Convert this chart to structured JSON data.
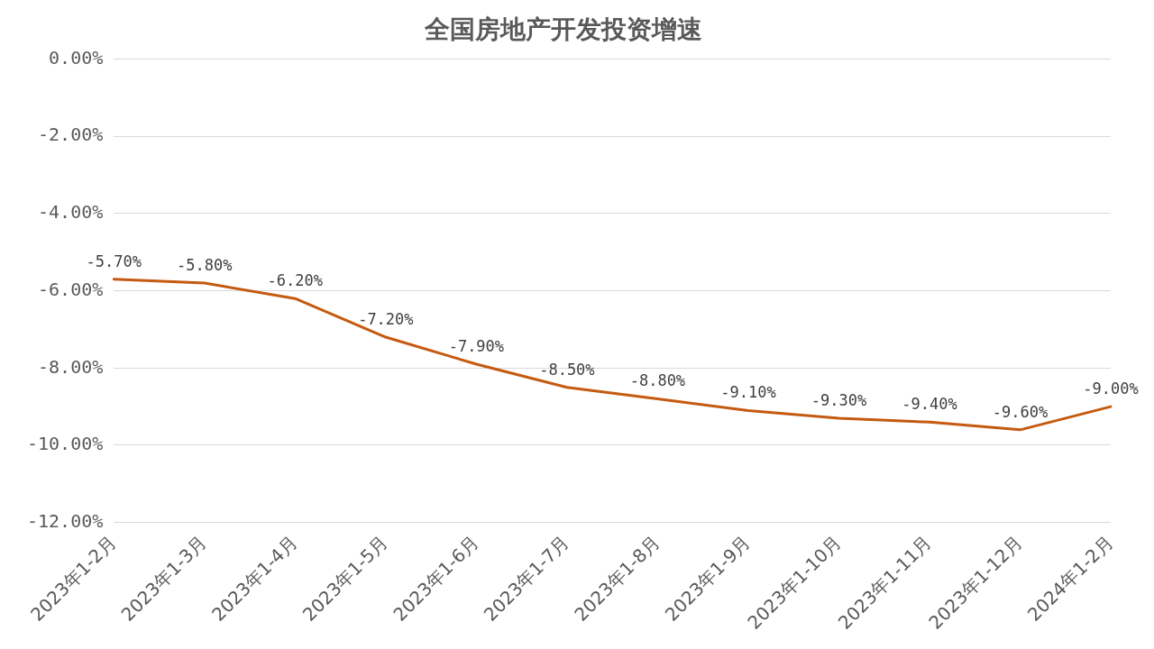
{
  "chart_data": {
    "type": "line",
    "title": "全国房地产开发投资增速",
    "categories": [
      "2023年1-2月",
      "2023年1-3月",
      "2023年1-4月",
      "2023年1-5月",
      "2023年1-6月",
      "2023年1-7月",
      "2023年1-8月",
      "2023年1-9月",
      "2023年1-10月",
      "2023年1-11月",
      "2023年1-12月",
      "2024年1-2月"
    ],
    "series": [
      {
        "color": "#c55a11",
        "values": [
          -5.7,
          -5.8,
          -6.2,
          -7.2,
          -7.9,
          -8.5,
          -8.8,
          -9.1,
          -9.3,
          -9.4,
          -9.6,
          -9.0
        ],
        "value_labels": [
          "-5.70%",
          "-5.80%",
          "-6.20%",
          "-7.20%",
          "-7.90%",
          "-8.50%",
          "-8.80%",
          "-9.10%",
          "-9.30%",
          "-9.40%",
          "-9.60%",
          "-9.00%"
        ]
      }
    ],
    "ylim": [
      -12,
      0
    ],
    "yticks": [
      {
        "value": 0,
        "label": "0.00%"
      },
      {
        "value": -2,
        "label": "-2.00%"
      },
      {
        "value": -4,
        "label": "-4.00%"
      },
      {
        "value": -6,
        "label": "-6.00%"
      },
      {
        "value": -8,
        "label": "-8.00%"
      },
      {
        "value": -10,
        "label": "-10.00%"
      },
      {
        "value": -12,
        "label": "-12.00%"
      }
    ],
    "grid": "y",
    "legend": false,
    "marker": "none",
    "line_style": "solid"
  }
}
